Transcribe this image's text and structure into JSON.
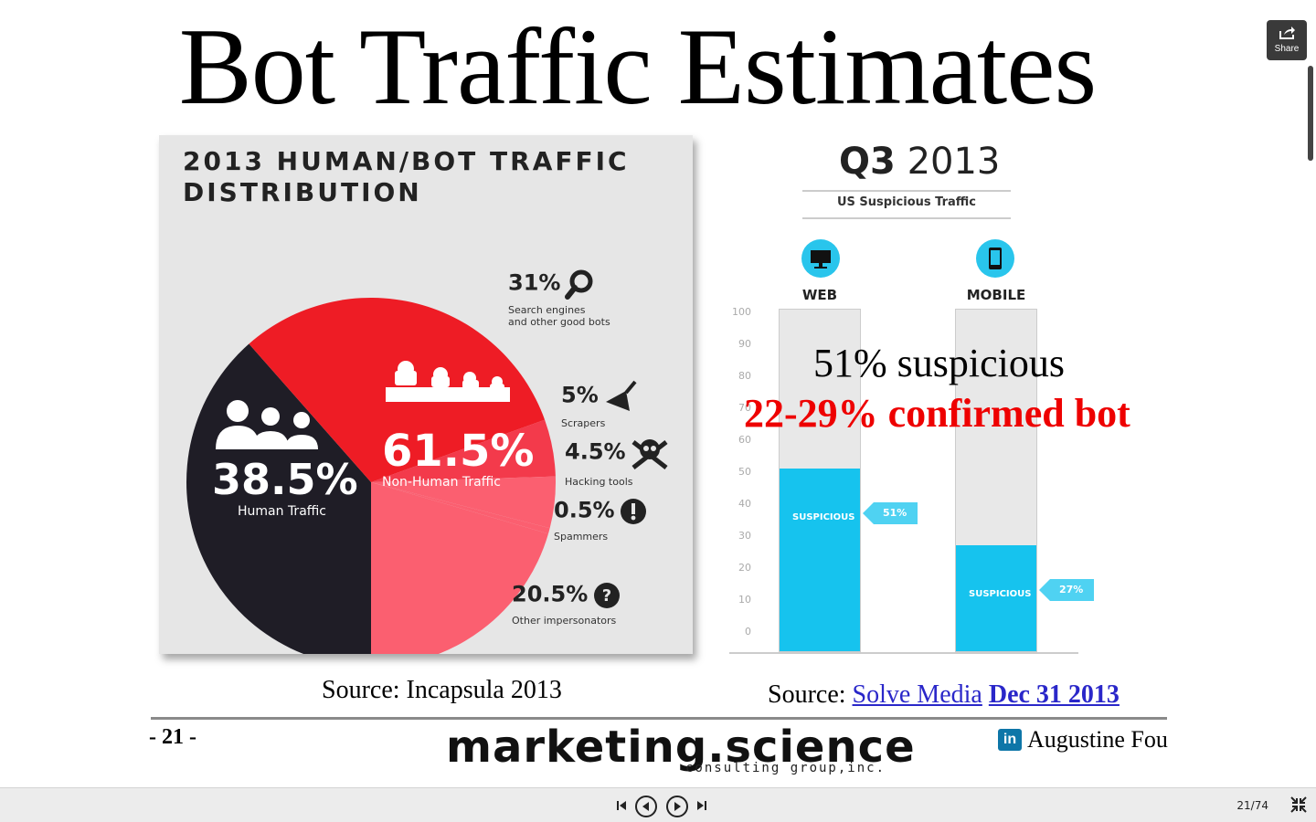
{
  "slide": {
    "title": "Bot Traffic Estimates",
    "overlay_line1": "51% suspicious",
    "overlay_line2": "22-29% confirmed bot",
    "page_number": "- 21 -",
    "logo_main": "marketing.science",
    "logo_sub": "consulting group,inc.",
    "author": "Augustine Fou",
    "linkedin_badge": "in"
  },
  "left_infographic": {
    "title_line1": "2013 HUMAN/BOT TRAFFIC",
    "title_line2": "DISTRIBUTION",
    "human_pct": "38.5%",
    "human_label": "Human Traffic",
    "nonhuman_pct": "61.5%",
    "nonhuman_label": "Non-Human Traffic",
    "segments": [
      {
        "pct": "31%",
        "label1": "Search engines",
        "label2": "and other good bots",
        "icon": "magnifier-icon"
      },
      {
        "pct": "5%",
        "label1": "Scrapers",
        "label2": "",
        "icon": "scraper-icon"
      },
      {
        "pct": "4.5%",
        "label1": "Hacking tools",
        "label2": "",
        "icon": "skull-icon"
      },
      {
        "pct": "0.5%",
        "label1": "Spammers",
        "label2": "",
        "icon": "alert-icon"
      },
      {
        "pct": "20.5%",
        "label1": "Other impersonators",
        "label2": "",
        "icon": "question-icon"
      }
    ],
    "colors": {
      "human": "#1f1d26",
      "good_bots": "#ee1c25",
      "bad_bots": "#fb5f70",
      "mid": "#f33a4b"
    },
    "source_prefix": "Source: Incapsula 2013"
  },
  "right_chart": {
    "quarter": "Q3",
    "year": "2013",
    "subtitle": "US Suspicious Traffic",
    "source_prefix": "Source:",
    "source_link1": "Solve Media",
    "source_link2": "Dec 31 2013"
  },
  "chart_data": [
    {
      "type": "pie",
      "title": "2013 HUMAN/BOT TRAFFIC DISTRIBUTION",
      "categories": [
        "Human Traffic",
        "Search engines and other good bots",
        "Scrapers",
        "Hacking tools",
        "Spammers",
        "Other impersonators"
      ],
      "values": [
        38.5,
        31,
        5,
        4.5,
        0.5,
        20.5
      ]
    },
    {
      "type": "bar",
      "title": "US Suspicious Traffic",
      "categories": [
        "WEB",
        "MOBILE"
      ],
      "series": [
        {
          "name": "SUSPICIOUS",
          "values": [
            51,
            27
          ]
        }
      ],
      "value_labels": [
        "51%",
        "27%"
      ],
      "ylim": [
        0,
        100
      ],
      "yticks": [
        "0",
        "10",
        "20",
        "30",
        "40",
        "50",
        "60",
        "70",
        "80",
        "90",
        "100"
      ],
      "bar_color": "#16c3ee"
    }
  ],
  "player": {
    "share_label": "Share",
    "counter": "21/74"
  }
}
